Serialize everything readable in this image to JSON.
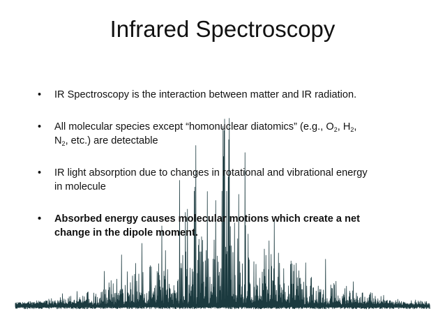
{
  "slide": {
    "title": "Infrared Spectroscopy",
    "bullet_glyph": "•",
    "bullets": [
      {
        "text": "IR Spectroscopy is the interaction between matter and IR radiation."
      },
      {
        "text_before": "All molecular species except “homonuclear diatomics” (e.g., ",
        "species": [
          {
            "base": "O",
            "sub": "2"
          },
          {
            "base": "H",
            "sub": "2"
          },
          {
            "base": "N",
            "sub": "2"
          }
        ],
        "separator": ", ",
        "text_after": ", etc.) are detectable"
      },
      {
        "text": "IR light absorption due to changes in rotational and vibrational energy in molecule"
      },
      {
        "text": "Absorbed energy causes molecular motions which create a net change in the dipole moment."
      }
    ]
  },
  "colors": {
    "background": "#ffffff",
    "text": "#111111",
    "spectrum": "#1b3a3f"
  },
  "decoration": {
    "name": "ir-spectrum-graphic"
  }
}
